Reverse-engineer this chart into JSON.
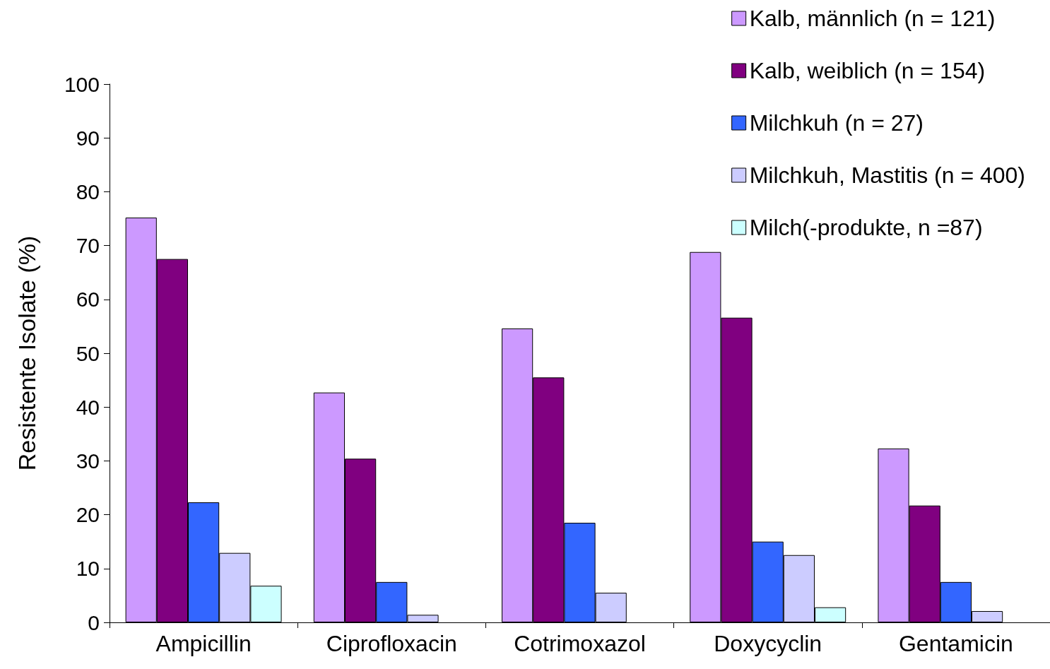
{
  "chart_data": {
    "type": "bar",
    "ylabel": "Resistente Isolate (%)",
    "categories": [
      "Ampicillin",
      "Ciprofloxacin",
      "Cotrimoxazol",
      "Doxycyclin",
      "Gentamicin"
    ],
    "series": [
      {
        "name": "Kalb, männlich (n = 121)",
        "color": "#cc99ff",
        "values": [
          75.2,
          42.7,
          54.6,
          68.8,
          32.3
        ]
      },
      {
        "name": "Kalb, weiblich (n = 154)",
        "color": "#800080",
        "values": [
          67.5,
          30.4,
          45.5,
          56.6,
          21.7
        ]
      },
      {
        "name": "Milchkuh (n = 27)",
        "color": "#3366ff",
        "values": [
          22.3,
          7.5,
          18.5,
          15.0,
          7.5
        ]
      },
      {
        "name": "Milchkuh, Mastitis (n = 400)",
        "color": "#ccccff",
        "values": [
          12.9,
          1.4,
          5.5,
          12.5,
          2.1
        ]
      },
      {
        "name": "Milch(-produkte, n =87)",
        "color": "#ccffff",
        "values": [
          6.8,
          null,
          null,
          2.8,
          null
        ]
      }
    ],
    "ylim": [
      0,
      100
    ],
    "yticks": [
      0,
      10,
      20,
      30,
      40,
      50,
      60,
      70,
      80,
      90,
      100
    ],
    "grid": false,
    "legend": "top right"
  }
}
